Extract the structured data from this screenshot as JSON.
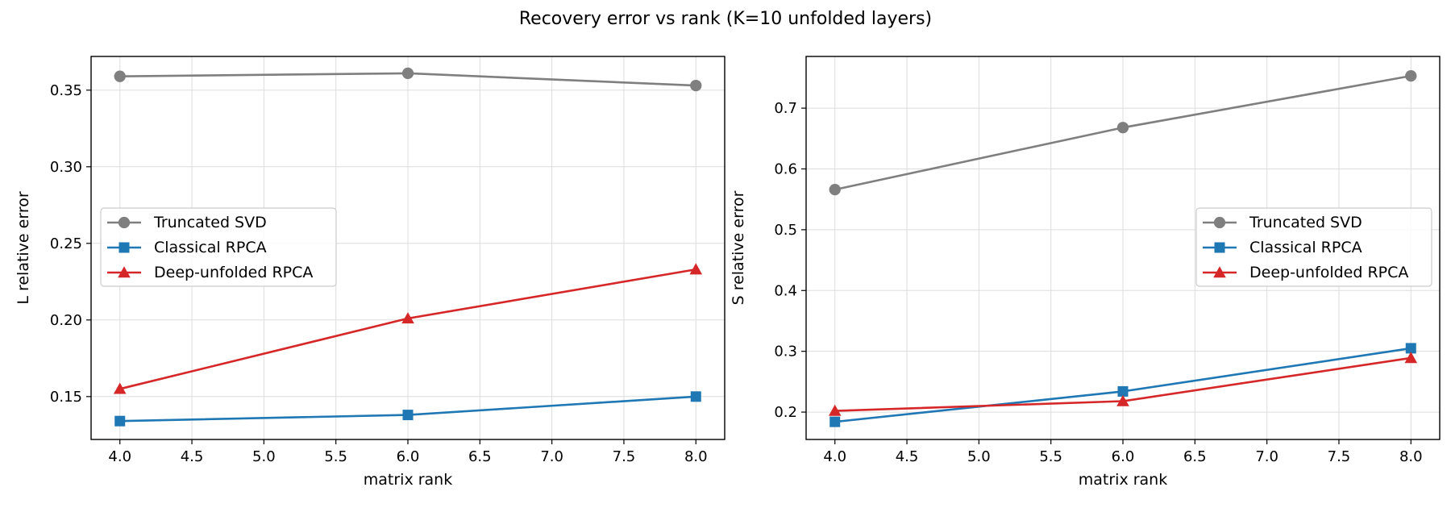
{
  "figure": {
    "title": "Recovery error vs rank (K=10 unfolded layers)"
  },
  "chart_data": [
    {
      "type": "line",
      "xlabel": "matrix rank",
      "ylabel": "L relative error",
      "xlim": [
        3.8,
        8.2
      ],
      "ylim": [
        0.122,
        0.372
      ],
      "xticks": [
        4.0,
        4.5,
        5.0,
        5.5,
        6.0,
        6.5,
        7.0,
        7.5,
        8.0
      ],
      "yticks": [
        0.15,
        0.2,
        0.25,
        0.3,
        0.35
      ],
      "grid": true,
      "legend_position": "center-left",
      "x": [
        4,
        6,
        8
      ],
      "series": [
        {
          "name": "Truncated SVD",
          "color": "#7f7f7f",
          "marker": "circle",
          "values": [
            0.359,
            0.361,
            0.353
          ]
        },
        {
          "name": "Classical RPCA",
          "color": "#1f77b4",
          "marker": "square",
          "values": [
            0.134,
            0.138,
            0.15
          ]
        },
        {
          "name": "Deep-unfolded RPCA",
          "color": "#d62728",
          "marker": "triangle",
          "values": [
            0.155,
            0.201,
            0.233
          ]
        }
      ]
    },
    {
      "type": "line",
      "xlabel": "matrix rank",
      "ylabel": "S relative error",
      "xlim": [
        3.8,
        8.2
      ],
      "ylim": [
        0.155,
        0.785
      ],
      "xticks": [
        4.0,
        4.5,
        5.0,
        5.5,
        6.0,
        6.5,
        7.0,
        7.5,
        8.0
      ],
      "yticks": [
        0.2,
        0.3,
        0.4,
        0.5,
        0.6,
        0.7
      ],
      "grid": true,
      "legend_position": "center-right",
      "x": [
        4,
        6,
        8
      ],
      "series": [
        {
          "name": "Truncated SVD",
          "color": "#7f7f7f",
          "marker": "circle",
          "values": [
            0.566,
            0.668,
            0.753
          ]
        },
        {
          "name": "Classical RPCA",
          "color": "#1f77b4",
          "marker": "square",
          "values": [
            0.184,
            0.234,
            0.305
          ]
        },
        {
          "name": "Deep-unfolded RPCA",
          "color": "#d62728",
          "marker": "triangle",
          "values": [
            0.202,
            0.218,
            0.289
          ]
        }
      ]
    }
  ]
}
